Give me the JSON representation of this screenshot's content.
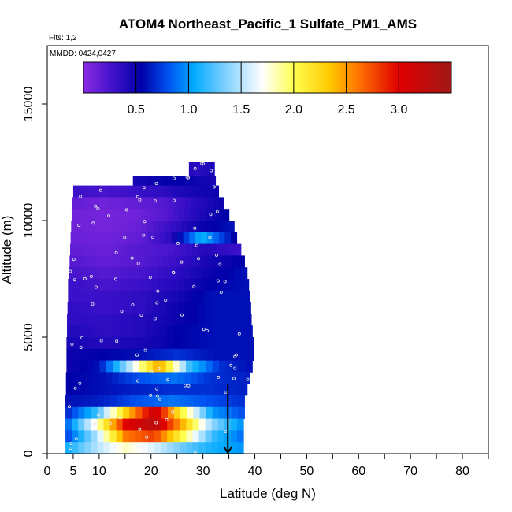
{
  "chart_data": {
    "type": "heatmap",
    "title": "ATOM4 Northeast_Pacific_1 Sulfate_PM1_AMS",
    "flights_label": "Flts: 1,2",
    "dates_label": "MMDD: 0424,0427",
    "xlabel": "Latitude (deg N)",
    "ylabel": "Altitude (m)",
    "xlim": [
      0,
      85
    ],
    "ylim": [
      0,
      17500
    ],
    "xticks": [
      0,
      5,
      10,
      20,
      30,
      40,
      50,
      60,
      70,
      80
    ],
    "yticks": [
      0,
      5000,
      10000,
      15000
    ],
    "colorbar": {
      "range": [
        0,
        3.5
      ],
      "ticks": [
        "0.5",
        "1.0",
        "1.5",
        "2.0",
        "2.5",
        "3.0"
      ],
      "tick_values": [
        0.5,
        1.0,
        1.5,
        2.0,
        2.5,
        3.0
      ],
      "stops": [
        {
          "v": 0.0,
          "c": "#8a2be2"
        },
        {
          "v": 0.3,
          "c": "#3a10c8"
        },
        {
          "v": 0.55,
          "c": "#0000a8"
        },
        {
          "v": 0.8,
          "c": "#0050f0"
        },
        {
          "v": 1.05,
          "c": "#00aaff"
        },
        {
          "v": 1.35,
          "c": "#7fd0ff"
        },
        {
          "v": 1.7,
          "c": "#ffffff"
        },
        {
          "v": 2.0,
          "c": "#ffff50"
        },
        {
          "v": 2.35,
          "c": "#ffc800"
        },
        {
          "v": 2.6,
          "c": "#ff7800"
        },
        {
          "v": 3.0,
          "c": "#e00000"
        },
        {
          "v": 3.5,
          "c": "#a01818"
        }
      ]
    },
    "flight_path_arrow": {
      "lat": 34.8,
      "alt_top": 3000,
      "alt_bottom": 0
    },
    "layers": [
      {
        "alt": [
          11900,
          12500
        ],
        "lat": [
          27.3,
          32.2
        ],
        "vals": [
          0.4,
          0.35,
          0.4,
          0.45
        ]
      },
      {
        "alt": [
          11500,
          11900
        ],
        "lat": [
          16.5,
          32.4
        ],
        "vals": [
          0.45,
          0.5,
          0.55,
          0.5,
          0.45
        ]
      },
      {
        "alt": [
          11000,
          11500
        ],
        "lat": [
          5.0,
          33.0
        ],
        "vals": [
          0.3,
          0.25,
          0.3,
          0.35,
          0.45,
          0.5
        ]
      },
      {
        "alt": [
          10500,
          11000
        ],
        "lat": [
          4.8,
          34.0
        ],
        "vals": [
          0.15,
          0.1,
          0.15,
          0.2,
          0.35,
          0.5
        ]
      },
      {
        "alt": [
          10000,
          10500
        ],
        "lat": [
          4.7,
          35.0
        ],
        "vals": [
          0.1,
          0.08,
          0.1,
          0.2,
          0.4,
          0.55
        ]
      },
      {
        "alt": [
          9500,
          10000
        ],
        "lat": [
          4.6,
          36.0
        ],
        "vals": [
          0.1,
          0.08,
          0.12,
          0.3,
          0.5,
          0.6
        ]
      },
      {
        "alt": [
          9000,
          9500
        ],
        "lat": [
          4.5,
          36.5
        ],
        "vals": [
          0.12,
          0.1,
          0.15,
          0.35,
          1.1,
          0.55
        ]
      },
      {
        "alt": [
          8500,
          9000
        ],
        "lat": [
          4.4,
          37.3
        ],
        "vals": [
          0.15,
          0.12,
          0.2,
          0.25,
          0.4,
          0.3
        ]
      },
      {
        "alt": [
          8000,
          8500
        ],
        "lat": [
          4.3,
          38.0
        ],
        "vals": [
          0.2,
          0.15,
          0.2,
          0.3,
          0.45,
          0.55
        ]
      },
      {
        "alt": [
          7500,
          8000
        ],
        "lat": [
          4.2,
          38.5
        ],
        "vals": [
          0.25,
          0.2,
          0.25,
          0.35,
          0.5,
          0.6
        ]
      },
      {
        "alt": [
          7000,
          7500
        ],
        "lat": [
          4.0,
          38.8
        ],
        "vals": [
          0.3,
          0.25,
          0.3,
          0.4,
          0.55,
          0.6
        ]
      },
      {
        "alt": [
          6500,
          7000
        ],
        "lat": [
          4.0,
          39.0
        ],
        "vals": [
          0.3,
          0.3,
          0.35,
          0.45,
          0.6,
          0.6
        ]
      },
      {
        "alt": [
          6000,
          6500
        ],
        "lat": [
          3.9,
          39.2
        ],
        "vals": [
          0.35,
          0.3,
          0.35,
          0.5,
          0.6,
          0.6
        ]
      },
      {
        "alt": [
          5500,
          6000
        ],
        "lat": [
          3.8,
          39.3
        ],
        "vals": [
          0.35,
          0.35,
          0.4,
          0.5,
          0.6,
          0.6
        ]
      },
      {
        "alt": [
          5000,
          5500
        ],
        "lat": [
          3.8,
          39.5
        ],
        "vals": [
          0.4,
          0.35,
          0.4,
          0.55,
          0.6,
          0.6
        ]
      },
      {
        "alt": [
          4500,
          5000
        ],
        "lat": [
          3.7,
          39.8
        ],
        "vals": [
          0.45,
          0.4,
          0.45,
          0.55,
          0.6,
          0.6
        ]
      },
      {
        "alt": [
          4000,
          4500
        ],
        "lat": [
          3.7,
          39.8
        ],
        "vals": [
          0.5,
          0.55,
          0.6,
          0.7,
          0.6,
          0.6
        ]
      },
      {
        "alt": [
          3500,
          4000
        ],
        "lat": [
          3.7,
          39.5
        ],
        "vals": [
          0.5,
          0.6,
          1.5,
          2.5,
          1.2,
          0.7,
          0.6
        ]
      },
      {
        "alt": [
          3000,
          3500
        ],
        "lat": [
          3.6,
          39.0
        ],
        "vals": [
          0.55,
          0.6,
          0.8,
          0.9,
          0.7,
          0.65
        ]
      },
      {
        "alt": [
          2500,
          3000
        ],
        "lat": [
          3.6,
          38.5
        ],
        "vals": [
          0.55,
          0.6,
          0.65,
          0.7,
          0.7,
          0.65
        ]
      },
      {
        "alt": [
          2000,
          2500
        ],
        "lat": [
          3.5,
          38.0
        ],
        "vals": [
          0.6,
          0.65,
          0.8,
          0.9,
          0.8,
          0.7
        ]
      },
      {
        "alt": [
          1500,
          2000
        ],
        "lat": [
          3.5,
          38.0
        ],
        "vals": [
          0.7,
          1.2,
          2.3,
          3.2,
          2.0,
          1.0,
          0.8
        ]
      },
      {
        "alt": [
          1000,
          1500
        ],
        "lat": [
          3.5,
          37.8
        ],
        "vals": [
          0.9,
          1.8,
          3.0,
          3.3,
          2.4,
          1.4,
          1.0
        ]
      },
      {
        "alt": [
          500,
          1000
        ],
        "lat": [
          3.5,
          37.8
        ],
        "vals": [
          0.8,
          1.5,
          2.6,
          2.8,
          2.0,
          1.2,
          0.9
        ]
      },
      {
        "alt": [
          0,
          500
        ],
        "lat": [
          3.5,
          37.8
        ],
        "vals": [
          1.1,
          1.5,
          1.8,
          1.6,
          1.3,
          1.1,
          1.0
        ]
      }
    ]
  }
}
